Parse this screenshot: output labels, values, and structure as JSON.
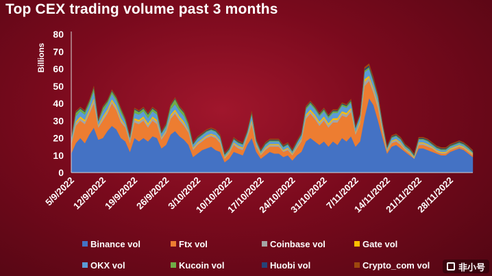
{
  "title": "Top CEX trading volume past 3 months",
  "watermark": "非小号",
  "chart_data": {
    "type": "area",
    "stacked": true,
    "title": "Top CEX trading volume past 3 months",
    "xlabel": "",
    "ylabel": "Billions",
    "ylim": [
      0,
      80
    ],
    "yticks": [
      0,
      10,
      20,
      30,
      40,
      50,
      60,
      70,
      80
    ],
    "x_tick_labels": [
      "5/9/2022",
      "12/9/2022",
      "19/9/2022",
      "26/9/2022",
      "3/10/2022",
      "10/10/2022",
      "17/10/2022",
      "24/10/2022",
      "31/10/2022",
      "7/11/2022",
      "14/11/2022",
      "21/11/2022",
      "28/11/2022"
    ],
    "x_tick_positions": [
      1,
      8,
      15,
      22,
      29,
      36,
      43,
      50,
      57,
      64,
      71,
      78,
      85
    ],
    "grid": false,
    "legend": "bottom",
    "colors": {
      "Binance vol": "#4472c4",
      "Ftx vol": "#ed7d31",
      "Coinbase vol": "#a5a5a5",
      "Gate vol": "#ffc000",
      "OKX vol": "#5b9bd5",
      "Kucoin vol": "#70ad47",
      "Huobi vol": "#264478",
      "Crypto_com vol": "#9e480e"
    },
    "x": [
      1,
      2,
      3,
      4,
      5,
      6,
      7,
      8,
      9,
      10,
      11,
      12,
      13,
      14,
      15,
      16,
      17,
      18,
      19,
      20,
      21,
      22,
      23,
      24,
      25,
      26,
      27,
      28,
      29,
      30,
      31,
      32,
      33,
      34,
      35,
      36,
      37,
      38,
      39,
      40,
      41,
      42,
      43,
      44,
      45,
      46,
      47,
      48,
      49,
      50,
      51,
      52,
      53,
      54,
      55,
      56,
      57,
      58,
      59,
      60,
      61,
      62,
      63,
      64,
      65,
      66,
      67,
      68,
      69,
      70,
      71,
      72,
      73,
      74,
      75,
      76,
      77,
      78,
      79,
      80,
      81,
      82,
      83,
      84,
      85,
      86,
      87,
      88,
      89,
      90
    ],
    "series": [
      {
        "name": "Binance vol",
        "values": [
          11,
          17,
          20,
          17,
          22,
          26,
          19,
          20,
          24,
          27,
          25,
          20,
          18,
          12,
          20,
          18,
          20,
          18,
          21,
          20,
          14,
          16,
          22,
          24,
          21,
          19,
          16,
          9,
          11,
          13,
          14,
          15,
          13,
          12,
          6,
          8,
          12,
          11,
          10,
          16,
          20,
          12,
          8,
          10,
          12,
          11,
          11,
          9,
          10,
          7,
          10,
          12,
          18,
          20,
          18,
          16,
          18,
          15,
          18,
          16,
          20,
          18,
          21,
          15,
          18,
          32,
          43,
          39,
          30,
          20,
          11,
          15,
          16,
          14,
          12,
          10,
          8,
          14,
          14,
          13,
          12,
          11,
          10,
          10,
          12,
          13,
          14,
          13,
          11,
          9
        ]
      },
      {
        "name": "Ftx vol",
        "values": [
          5,
          10,
          10,
          11,
          12,
          14,
          7,
          10,
          10,
          13,
          11,
          9,
          8,
          5,
          9,
          10,
          10,
          8,
          9,
          8,
          5,
          7,
          9,
          10,
          9,
          8,
          7,
          4,
          5,
          5,
          6,
          6,
          7,
          5,
          2,
          3,
          4,
          3,
          3,
          4,
          8,
          3,
          2,
          3,
          3,
          4,
          4,
          3,
          3,
          3,
          4,
          6,
          13,
          14,
          13,
          11,
          12,
          11,
          11,
          13,
          13,
          14,
          14,
          7,
          10,
          18,
          10,
          7,
          7,
          3,
          1,
          2,
          2,
          2,
          1,
          1,
          0,
          2,
          2,
          2,
          2,
          1,
          1,
          1,
          1,
          1,
          1,
          1,
          1,
          1
        ]
      },
      {
        "name": "Coinbase vol",
        "values": [
          1,
          1.5,
          1.5,
          1.5,
          1.5,
          2,
          1,
          1.5,
          1.5,
          1.5,
          1.5,
          1.5,
          1,
          1,
          1.5,
          1.5,
          1.5,
          1.5,
          1.5,
          1.5,
          1,
          1,
          1.5,
          1.5,
          1.5,
          1.5,
          1,
          1,
          1,
          1,
          1,
          1,
          1,
          1,
          0.5,
          0.5,
          1,
          1,
          1,
          1,
          1.5,
          1,
          0.5,
          1,
          1,
          1,
          1,
          0.5,
          1,
          0.5,
          1,
          1,
          1.5,
          1.5,
          1.5,
          1.5,
          1.5,
          1.5,
          1.5,
          1.5,
          1.5,
          1.5,
          1.5,
          1,
          1,
          2.5,
          2,
          2,
          2,
          1.5,
          0.5,
          1,
          1,
          1,
          0.5,
          0.5,
          0.5,
          1,
          1,
          1,
          0.5,
          0.5,
          0.5,
          0.5,
          0.5,
          0.5,
          0.5,
          0.5,
          0.5,
          0.5
        ]
      },
      {
        "name": "Gate vol",
        "values": [
          0.5,
          1,
          1,
          1,
          1,
          1,
          0.5,
          1,
          1,
          1,
          1,
          1,
          0.5,
          0.5,
          1,
          1,
          1,
          1,
          1,
          1,
          0.5,
          0.5,
          1,
          1,
          1,
          1,
          0.5,
          0.5,
          0.5,
          0.5,
          0.5,
          0.5,
          0.5,
          0.5,
          0.5,
          0.5,
          0.5,
          0.5,
          0.5,
          0.5,
          1,
          0.5,
          0.5,
          0.5,
          0.5,
          0.5,
          0.5,
          0.5,
          0.5,
          0.5,
          0.5,
          0.5,
          1,
          1,
          1,
          1,
          1,
          1,
          1,
          1,
          1,
          1,
          1,
          0.5,
          1,
          1.5,
          1,
          1,
          1,
          1,
          0.5,
          0.5,
          0.5,
          0.5,
          0.5,
          0.5,
          0.5,
          0.5,
          0.5,
          0.5,
          0.5,
          0.5,
          0.5,
          0.5,
          0.5,
          0.5,
          0.5,
          0.5,
          0.5,
          0.5
        ]
      },
      {
        "name": "OKX vol",
        "values": [
          2,
          3,
          3,
          3,
          3,
          4,
          2,
          3,
          3,
          3,
          3,
          3,
          2,
          1.5,
          3,
          3,
          3,
          3,
          3,
          3,
          2,
          2,
          3,
          3,
          3,
          3,
          2,
          1.5,
          2,
          2,
          2,
          2,
          2,
          2,
          1,
          1,
          1.5,
          1.5,
          1.5,
          1.5,
          3,
          1.5,
          1,
          1.5,
          1.5,
          1.5,
          1.5,
          1.5,
          1.5,
          1,
          1.5,
          2,
          3,
          3,
          3,
          3,
          3,
          3,
          3,
          3,
          3,
          3,
          3,
          2,
          2.5,
          4,
          4,
          3,
          3,
          2,
          1,
          1.5,
          1.5,
          1.5,
          1,
          1,
          0.5,
          1.5,
          1.5,
          1.5,
          1,
          1,
          1,
          1,
          1,
          1,
          1,
          1,
          1,
          0.5
        ]
      },
      {
        "name": "Kucoin vol",
        "values": [
          0.5,
          2,
          1.5,
          1.5,
          1.5,
          2,
          0.5,
          2,
          1.5,
          1.5,
          1.5,
          2,
          1,
          0.5,
          2,
          1.5,
          1.5,
          2,
          1.5,
          1.5,
          0.5,
          1,
          2,
          3,
          2,
          2,
          1.5,
          0.5,
          0.5,
          0.5,
          0.5,
          0.5,
          0.5,
          0.5,
          0.5,
          0.5,
          0.5,
          0.5,
          0.5,
          0.5,
          1,
          0.5,
          0.5,
          0.5,
          0.5,
          0.5,
          0.5,
          0.5,
          0.5,
          0.5,
          0.5,
          0.5,
          1,
          1,
          1,
          1,
          1,
          1,
          1,
          1,
          1,
          1,
          1,
          0.5,
          0.5,
          1,
          1,
          1,
          1,
          0.5,
          0.5,
          0.5,
          0.5,
          0.5,
          0.5,
          0.5,
          0.5,
          0.5,
          0.5,
          0.5,
          0.5,
          0.5,
          0.5,
          0.5,
          0.5,
          0.5,
          0.5,
          0.5,
          0.5,
          0.5
        ]
      },
      {
        "name": "Huobi vol",
        "values": [
          0.5,
          0.5,
          0.5,
          0.5,
          0.5,
          0.5,
          0.5,
          0.5,
          0.5,
          0.5,
          0.5,
          0.5,
          0.5,
          0.5,
          0.5,
          0.5,
          0.5,
          0.5,
          0.5,
          0.5,
          0.5,
          0.5,
          0.5,
          0.5,
          0.5,
          0.5,
          0.5,
          0.5,
          0.5,
          0.5,
          0.5,
          0.5,
          0.5,
          0.5,
          0.5,
          0.5,
          0.5,
          0.5,
          0.5,
          0.5,
          0.5,
          0.5,
          0.5,
          0.5,
          0.5,
          0.5,
          0.5,
          0.5,
          0.5,
          0.5,
          0.5,
          0.5,
          0.5,
          0.5,
          0.5,
          0.5,
          0.5,
          0.5,
          0.5,
          0.5,
          0.5,
          0.5,
          0.5,
          0.5,
          0.5,
          1,
          1,
          1,
          0.5,
          0.5,
          0.5,
          0.5,
          0.5,
          0.5,
          0.5,
          0.5,
          0.5,
          0.5,
          0.5,
          0.5,
          0.5,
          0.5,
          0.5,
          0.5,
          0.5,
          0.5,
          0.5,
          0.5,
          0.5,
          0.5
        ]
      },
      {
        "name": "Crypto_com vol",
        "values": [
          0.5,
          0.5,
          0.5,
          0.5,
          0.5,
          0.5,
          0.5,
          0.5,
          0.5,
          0.5,
          0.5,
          0.5,
          0.5,
          0.5,
          0.5,
          0.5,
          0.5,
          0.5,
          0.5,
          0.5,
          0.5,
          0.5,
          0.5,
          0.5,
          0.5,
          0.5,
          0.5,
          0.5,
          0.5,
          0.5,
          0.5,
          0.5,
          0.5,
          0.5,
          0.5,
          0.5,
          0.5,
          0.5,
          0.5,
          0.5,
          0.5,
          0.5,
          0.5,
          0.5,
          0.5,
          0.5,
          0.5,
          0.5,
          0.5,
          0.5,
          0.5,
          0.5,
          0.5,
          0.5,
          0.5,
          0.5,
          0.5,
          0.5,
          0.5,
          0.5,
          0.5,
          0.5,
          0.5,
          0.5,
          0.5,
          1,
          1,
          1,
          0.5,
          0.5,
          0.5,
          0.5,
          0.5,
          0.5,
          0.5,
          0.5,
          0.5,
          0.5,
          0.5,
          0.5,
          0.5,
          0.5,
          0.5,
          0.5,
          0.5,
          0.5,
          0.5,
          0.5,
          0.5,
          0.5
        ]
      }
    ]
  }
}
